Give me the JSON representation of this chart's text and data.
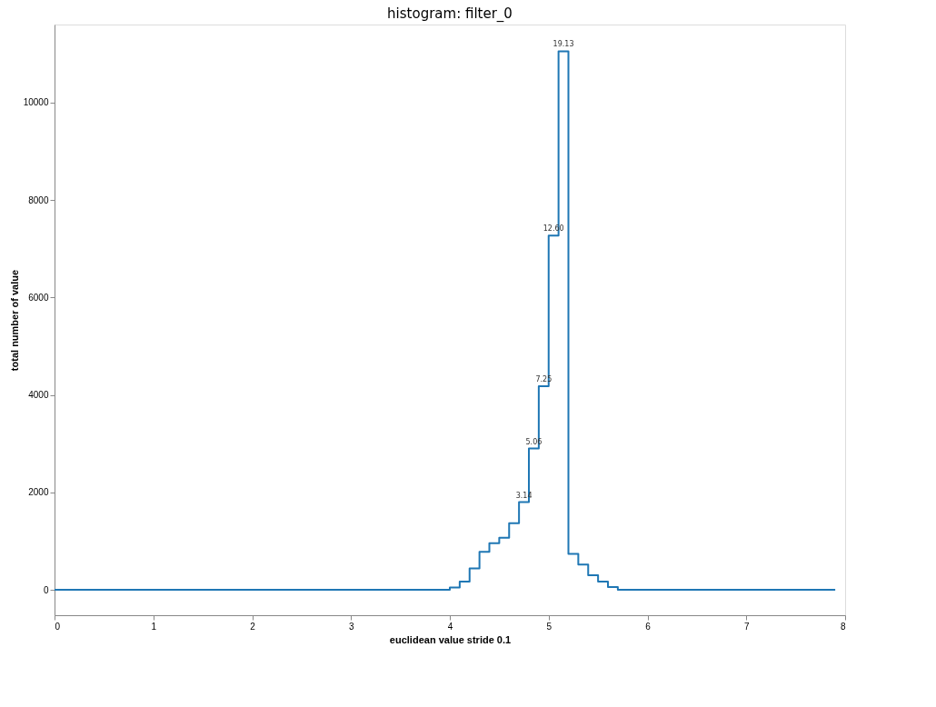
{
  "chart_data": {
    "type": "histogram",
    "title": "histogram: filter_0",
    "xlabel": "euclidean value stride 0.1",
    "ylabel": "total number of value",
    "bins": [
      0.0,
      0.1,
      0.2,
      0.3,
      0.4,
      0.5,
      0.6,
      0.7,
      0.8,
      0.9,
      1.0,
      1.1,
      1.2,
      1.3,
      1.4,
      1.5,
      1.6,
      1.7,
      1.8,
      1.9,
      2.0,
      2.1,
      2.2,
      2.3,
      2.4,
      2.5,
      2.6,
      2.7,
      2.8,
      2.9,
      3.0,
      3.1,
      3.2,
      3.3,
      3.4,
      3.5,
      3.6,
      3.7,
      3.8,
      3.9,
      4.0,
      4.1,
      4.2,
      4.3,
      4.4,
      4.5,
      4.6,
      4.7,
      4.8,
      4.9,
      5.0,
      5.1,
      5.2,
      5.3,
      5.4,
      5.5,
      5.6,
      5.7,
      5.8,
      5.9,
      6.0,
      6.1,
      6.2,
      6.3,
      6.4,
      6.5,
      6.6,
      6.7,
      6.8,
      6.9,
      7.0,
      7.1,
      7.2,
      7.3,
      7.4,
      7.5,
      7.6,
      7.7,
      7.8,
      7.9
    ],
    "values": [
      0,
      0,
      0,
      0,
      0,
      0,
      0,
      0,
      0,
      0,
      0,
      0,
      0,
      0,
      0,
      0,
      0,
      0,
      0,
      0,
      0,
      0,
      0,
      0,
      0,
      0,
      0,
      0,
      0,
      0,
      0,
      0,
      0,
      0,
      0,
      0,
      0,
      0,
      0,
      0,
      50,
      170,
      440,
      780,
      960,
      1070,
      1370,
      1800,
      2900,
      4180,
      7270,
      11050,
      740,
      520,
      300,
      170,
      60,
      0,
      0,
      0,
      0,
      0,
      0,
      0,
      0,
      0,
      0,
      0,
      0,
      0,
      0,
      0,
      0,
      0,
      0,
      0,
      0,
      0,
      0
    ],
    "annotations": [
      {
        "text": "3.14",
        "x": 4.75,
        "y": 1800
      },
      {
        "text": "5.06",
        "x": 4.85,
        "y": 2900
      },
      {
        "text": "7.25",
        "x": 4.95,
        "y": 4180
      },
      {
        "text": "12.60",
        "x": 5.05,
        "y": 7270
      },
      {
        "text": "19.13",
        "x": 5.15,
        "y": 11050
      }
    ],
    "color": "#1f77b4",
    "xlim": [
      0,
      8
    ],
    "xticks": [
      0,
      1,
      2,
      3,
      4,
      5,
      6,
      7,
      8
    ],
    "ylim": [
      -520,
      11600
    ],
    "yticks": [
      0,
      2000,
      4000,
      6000,
      8000,
      10000
    ],
    "grid": false
  }
}
